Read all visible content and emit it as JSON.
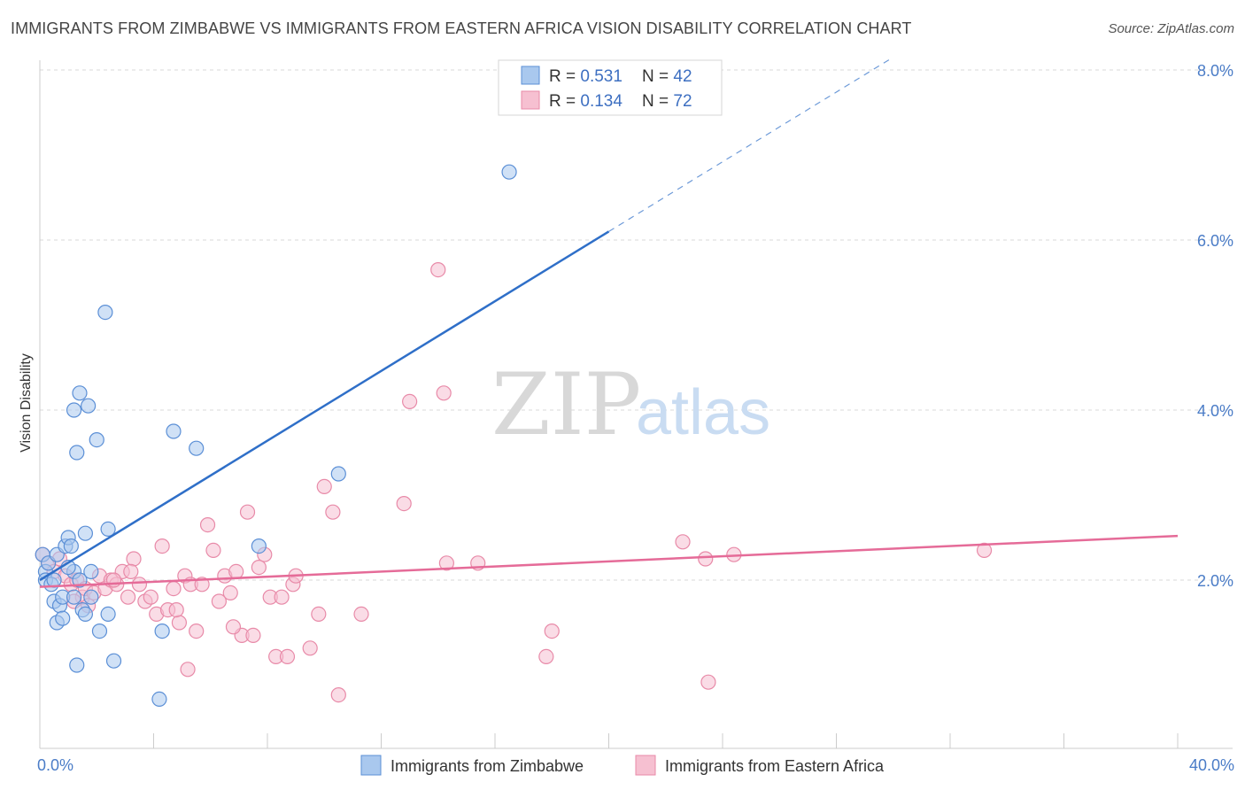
{
  "title": "IMMIGRANTS FROM ZIMBABWE VS IMMIGRANTS FROM EASTERN AFRICA VISION DISABILITY CORRELATION CHART",
  "source": "Source: ZipAtlas.com",
  "watermark": {
    "zip": "ZIP",
    "atlas": "atlas"
  },
  "colors": {
    "zimbabwe_fill": "#a9c8ee",
    "zimbabwe_stroke": "#5b8fd6",
    "zimbabwe_line": "#2f6fc8",
    "eastafrica_fill": "#f6c0d1",
    "eastafrica_stroke": "#e88aa8",
    "eastafrica_line": "#e56b98",
    "grid": "#d9d9d9",
    "axis_tick": "#4a7cc7"
  },
  "legend": {
    "rows": [
      {
        "r_label": "R = ",
        "r_value": "0.531",
        "n_label": "N = ",
        "n_value": "42"
      },
      {
        "r_label": "R = ",
        "r_value": "0.134",
        "n_label": "N = ",
        "n_value": "72"
      }
    ]
  },
  "chart_data": {
    "type": "scatter",
    "title": "IMMIGRANTS FROM ZIMBABWE VS IMMIGRANTS FROM EASTERN AFRICA VISION DISABILITY CORRELATION CHART",
    "xlabel": "",
    "ylabel": "Vision Disability",
    "xlim": [
      0,
      40
    ],
    "ylim": [
      0,
      8.4
    ],
    "x_tick_labels": [
      "0.0%",
      "40.0%"
    ],
    "y_ticks": [
      2,
      4,
      6,
      8
    ],
    "y_tick_labels": [
      "2.0%",
      "4.0%",
      "6.0%",
      "8.0%"
    ],
    "grid": true,
    "legend_position": "top-center",
    "series": [
      {
        "name": "Immigrants from Zimbabwe",
        "r": 0.531,
        "n": 42,
        "trend": {
          "x0": 0,
          "y0": 2.0,
          "x1": 20,
          "y1": 6.1,
          "dashed_to_x": 30
        },
        "points": [
          [
            0.1,
            2.3
          ],
          [
            0.2,
            2.1
          ],
          [
            0.3,
            2.2
          ],
          [
            0.2,
            2.0
          ],
          [
            0.4,
            1.95
          ],
          [
            0.5,
            2.0
          ],
          [
            0.6,
            2.3
          ],
          [
            0.5,
            1.75
          ],
          [
            0.7,
            1.7
          ],
          [
            0.8,
            1.8
          ],
          [
            0.9,
            2.4
          ],
          [
            1.0,
            2.5
          ],
          [
            1.1,
            2.4
          ],
          [
            0.6,
            1.5
          ],
          [
            0.8,
            1.55
          ],
          [
            1.2,
            2.1
          ],
          [
            1.2,
            1.8
          ],
          [
            1.4,
            2.0
          ],
          [
            1.0,
            2.15
          ],
          [
            1.5,
            1.65
          ],
          [
            1.6,
            1.6
          ],
          [
            1.8,
            1.8
          ],
          [
            1.4,
            4.2
          ],
          [
            1.3,
            1.0
          ],
          [
            1.7,
            4.05
          ],
          [
            1.2,
            4.0
          ],
          [
            2.0,
            3.65
          ],
          [
            1.3,
            3.5
          ],
          [
            2.1,
            1.4
          ],
          [
            2.3,
            5.15
          ],
          [
            2.4,
            2.6
          ],
          [
            2.4,
            1.6
          ],
          [
            2.6,
            1.05
          ],
          [
            1.6,
            2.55
          ],
          [
            1.8,
            2.1
          ],
          [
            4.3,
            1.4
          ],
          [
            4.2,
            0.6
          ],
          [
            4.7,
            3.75
          ],
          [
            5.5,
            3.55
          ],
          [
            7.7,
            2.4
          ],
          [
            10.5,
            3.25
          ],
          [
            16.5,
            6.8
          ]
        ]
      },
      {
        "name": "Immigrants from Eastern Africa",
        "r": 0.134,
        "n": 72,
        "trend": {
          "x0": 0,
          "y0": 1.92,
          "x1": 40,
          "y1": 2.52
        },
        "points": [
          [
            0.1,
            2.3
          ],
          [
            0.3,
            2.2
          ],
          [
            0.5,
            2.1
          ],
          [
            0.7,
            2.25
          ],
          [
            0.9,
            2.05
          ],
          [
            1.1,
            1.95
          ],
          [
            1.3,
            2.0
          ],
          [
            1.5,
            1.8
          ],
          [
            1.6,
            1.9
          ],
          [
            1.7,
            1.7
          ],
          [
            1.9,
            1.85
          ],
          [
            2.1,
            2.05
          ],
          [
            2.3,
            1.9
          ],
          [
            2.5,
            2.0
          ],
          [
            2.7,
            1.95
          ],
          [
            2.9,
            2.1
          ],
          [
            3.1,
            1.8
          ],
          [
            3.3,
            2.25
          ],
          [
            3.5,
            1.95
          ],
          [
            3.7,
            1.75
          ],
          [
            3.9,
            1.8
          ],
          [
            4.1,
            1.6
          ],
          [
            4.3,
            2.4
          ],
          [
            4.5,
            1.65
          ],
          [
            4.7,
            1.9
          ],
          [
            4.9,
            1.5
          ],
          [
            5.1,
            2.05
          ],
          [
            5.3,
            1.95
          ],
          [
            5.5,
            1.4
          ],
          [
            5.7,
            1.95
          ],
          [
            5.9,
            2.65
          ],
          [
            6.1,
            2.35
          ],
          [
            6.3,
            1.75
          ],
          [
            6.5,
            2.05
          ],
          [
            6.7,
            1.85
          ],
          [
            6.9,
            2.1
          ],
          [
            7.1,
            1.35
          ],
          [
            7.3,
            2.8
          ],
          [
            7.5,
            1.35
          ],
          [
            7.7,
            2.15
          ],
          [
            7.9,
            2.3
          ],
          [
            8.1,
            1.8
          ],
          [
            8.3,
            1.1
          ],
          [
            8.5,
            1.8
          ],
          [
            8.7,
            1.1
          ],
          [
            8.9,
            1.95
          ],
          [
            9.0,
            2.05
          ],
          [
            9.5,
            1.2
          ],
          [
            9.8,
            1.6
          ],
          [
            10.0,
            3.1
          ],
          [
            10.3,
            2.8
          ],
          [
            10.5,
            0.65
          ],
          [
            11.3,
            1.6
          ],
          [
            12.8,
            2.9
          ],
          [
            13.0,
            4.1
          ],
          [
            14.0,
            5.65
          ],
          [
            14.2,
            4.2
          ],
          [
            14.3,
            2.2
          ],
          [
            15.4,
            2.2
          ],
          [
            18.0,
            1.4
          ],
          [
            17.8,
            1.1
          ],
          [
            22.6,
            2.45
          ],
          [
            23.4,
            2.25
          ],
          [
            23.5,
            0.8
          ],
          [
            24.4,
            2.3
          ],
          [
            33.2,
            2.35
          ],
          [
            2.6,
            2.0
          ],
          [
            3.2,
            2.1
          ],
          [
            4.8,
            1.65
          ],
          [
            5.2,
            0.95
          ],
          [
            6.8,
            1.45
          ],
          [
            1.2,
            1.75
          ]
        ]
      }
    ]
  }
}
